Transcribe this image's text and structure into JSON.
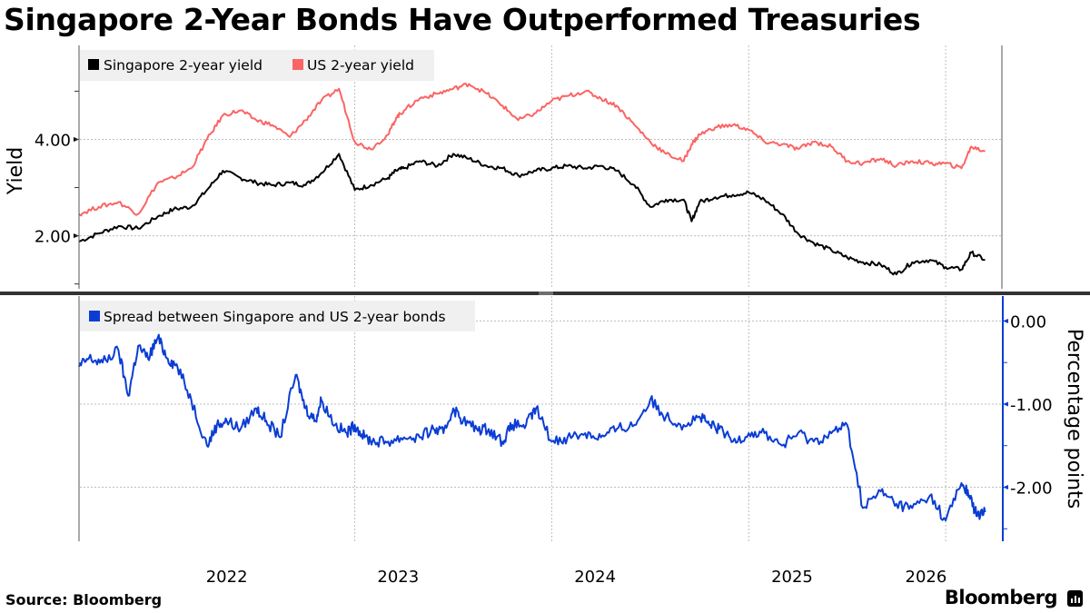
{
  "title": "Singapore 2-Year Bonds Have Outperformed Treasuries",
  "source": "Source: Bloomberg",
  "brand": "Bloomberg",
  "brand_icon": "bloomberg-terminal-icon",
  "colors": {
    "singapore": "#000000",
    "us": "#fb6464",
    "spread": "#0b3dd4",
    "legend_bg": "#f0f0f0",
    "grid": "#bdbdbd",
    "divider": "#333333"
  },
  "chart_data": [
    {
      "type": "line",
      "panel": "top",
      "ylabel": "Yield",
      "yticks": [
        "2.00",
        "4.00"
      ],
      "ytick_values": [
        2.0,
        4.0
      ],
      "ylim": [
        0.9,
        5.95
      ],
      "legend": [
        "Singapore 2-year yield",
        "US 2-year yield"
      ],
      "legend_position": "top-left",
      "grid": true,
      "x": [
        2021.6,
        2021.7,
        2021.8,
        2021.9,
        2022.0,
        2022.08,
        2022.17,
        2022.25,
        2022.33,
        2022.42,
        2022.5,
        2022.58,
        2022.67,
        2022.75,
        2022.83,
        2022.92,
        2023.0,
        2023.08,
        2023.17,
        2023.21,
        2023.25,
        2023.33,
        2023.42,
        2023.5,
        2023.58,
        2023.67,
        2023.75,
        2023.83,
        2023.92,
        2024.0,
        2024.08,
        2024.17,
        2024.25,
        2024.33,
        2024.42,
        2024.5,
        2024.58,
        2024.67,
        2024.71,
        2024.75,
        2024.83,
        2024.92,
        2025.0,
        2025.08,
        2025.17,
        2025.25,
        2025.33,
        2025.42,
        2025.5,
        2025.58,
        2025.67,
        2025.75,
        2025.83,
        2025.92,
        2026.0,
        2026.08,
        2026.13,
        2026.2
      ],
      "series": [
        {
          "name": "Singapore 2-year yield",
          "values": [
            1.88,
            2.05,
            2.2,
            2.15,
            2.4,
            2.55,
            2.6,
            2.95,
            3.35,
            3.2,
            3.1,
            3.05,
            3.1,
            3.05,
            3.3,
            3.7,
            2.95,
            3.05,
            3.2,
            3.35,
            3.4,
            3.55,
            3.45,
            3.7,
            3.6,
            3.45,
            3.4,
            3.25,
            3.35,
            3.4,
            3.45,
            3.4,
            3.45,
            3.35,
            3.05,
            2.6,
            2.75,
            2.75,
            2.3,
            2.7,
            2.8,
            2.85,
            2.9,
            2.75,
            2.45,
            2.05,
            1.85,
            1.7,
            1.55,
            1.45,
            1.4,
            1.2,
            1.45,
            1.5,
            1.35,
            1.3,
            1.65,
            1.5
          ]
        },
        {
          "name": "US 2-year yield",
          "values": [
            2.45,
            2.6,
            2.7,
            2.45,
            3.1,
            3.2,
            3.4,
            4.0,
            4.5,
            4.6,
            4.4,
            4.3,
            4.05,
            4.4,
            4.8,
            5.05,
            3.95,
            3.8,
            4.1,
            4.45,
            4.6,
            4.85,
            4.95,
            5.05,
            5.15,
            4.95,
            4.7,
            4.4,
            4.55,
            4.8,
            4.9,
            5.0,
            4.85,
            4.7,
            4.3,
            3.95,
            3.7,
            3.55,
            3.9,
            4.1,
            4.25,
            4.3,
            4.2,
            3.95,
            3.9,
            3.8,
            3.95,
            3.85,
            3.55,
            3.5,
            3.6,
            3.45,
            3.55,
            3.5,
            3.5,
            3.4,
            3.85,
            3.75
          ]
        }
      ]
    },
    {
      "type": "line",
      "panel": "bottom",
      "ylabel": "Percentage points",
      "yticks": [
        "0.00",
        "-1.00",
        "-2.00"
      ],
      "ytick_values": [
        0.0,
        -1.0,
        -2.0
      ],
      "ylim": [
        -2.65,
        0.3
      ],
      "legend": [
        "Spread between Singapore and US 2-year bonds"
      ],
      "legend_position": "top-left",
      "grid": true,
      "x": [
        2021.6,
        2021.65,
        2021.72,
        2021.8,
        2021.85,
        2021.9,
        2021.95,
        2022.0,
        2022.05,
        2022.1,
        2022.17,
        2022.25,
        2022.3,
        2022.35,
        2022.42,
        2022.5,
        2022.55,
        2022.62,
        2022.7,
        2022.75,
        2022.8,
        2022.83,
        2022.9,
        2022.96,
        2023.0,
        2023.05,
        2023.1,
        2023.17,
        2023.25,
        2023.33,
        2023.4,
        2023.45,
        2023.5,
        2023.55,
        2023.62,
        2023.68,
        2023.75,
        2023.8,
        2023.87,
        2023.92,
        2024.0,
        2024.08,
        2024.17,
        2024.25,
        2024.33,
        2024.42,
        2024.5,
        2024.58,
        2024.67,
        2024.75,
        2024.8,
        2024.85,
        2024.92,
        2025.0,
        2025.08,
        2025.17,
        2025.25,
        2025.33,
        2025.42,
        2025.5,
        2025.58,
        2025.67,
        2025.75,
        2025.83,
        2025.92,
        2026.0,
        2026.08,
        2026.12,
        2026.16,
        2026.2
      ],
      "series": [
        {
          "name": "Spread between Singapore and US 2-year bonds",
          "values": [
            -0.55,
            -0.45,
            -0.5,
            -0.35,
            -0.9,
            -0.3,
            -0.45,
            -0.2,
            -0.45,
            -0.55,
            -0.95,
            -1.5,
            -1.25,
            -1.2,
            -1.3,
            -1.05,
            -1.2,
            -1.4,
            -0.65,
            -1.05,
            -1.2,
            -0.95,
            -1.25,
            -1.35,
            -1.25,
            -1.4,
            -1.45,
            -1.45,
            -1.4,
            -1.4,
            -1.3,
            -1.35,
            -1.05,
            -1.2,
            -1.3,
            -1.3,
            -1.45,
            -1.25,
            -1.25,
            -1.05,
            -1.45,
            -1.4,
            -1.35,
            -1.4,
            -1.3,
            -1.25,
            -0.95,
            -1.15,
            -1.25,
            -1.15,
            -1.25,
            -1.3,
            -1.45,
            -1.35,
            -1.35,
            -1.5,
            -1.35,
            -1.45,
            -1.35,
            -1.25,
            -2.25,
            -2.05,
            -2.2,
            -2.25,
            -2.1,
            -2.4,
            -1.95,
            -2.1,
            -2.35,
            -2.3
          ]
        }
      ]
    }
  ],
  "x_axis": {
    "tick_labels": [
      "2022",
      "2023",
      "2024",
      "2025",
      "2026"
    ],
    "tick_label_positions": [
      2022.35,
      2023.22,
      2024.22,
      2025.22,
      2025.9
    ],
    "gridlines": [
      2023.0,
      2024.0,
      2025.0,
      2026.0
    ],
    "xlim": [
      2021.6,
      2026.29
    ]
  }
}
